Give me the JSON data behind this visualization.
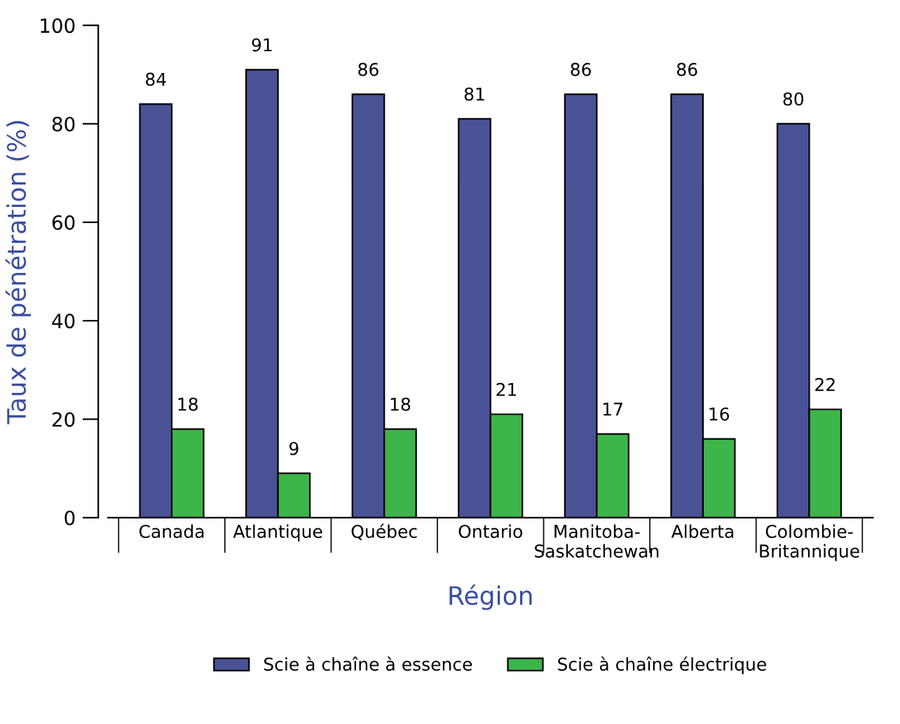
{
  "chart_data": {
    "type": "bar",
    "xlabel": "Région",
    "ylabel": "Taux de pénétration (%)",
    "categories": [
      "Canada",
      "Atlantique",
      "Québec",
      "Ontario",
      "Manitoba-\nSaskatchewan",
      "Alberta",
      "Colombie-\nBritannique"
    ],
    "series": [
      {
        "name": "Scie à chaîne à essence",
        "color": "#4a5296",
        "values": [
          84,
          91,
          86,
          81,
          86,
          86,
          80
        ]
      },
      {
        "name": "Scie à chaîne électrique",
        "color": "#3cb54a",
        "values": [
          18,
          9,
          18,
          21,
          17,
          16,
          22
        ]
      }
    ],
    "ylim": [
      0,
      100
    ],
    "yticks": [
      0,
      20,
      40,
      60,
      80,
      100
    ],
    "data_labels": true,
    "legend": "bottom",
    "grid": false
  }
}
